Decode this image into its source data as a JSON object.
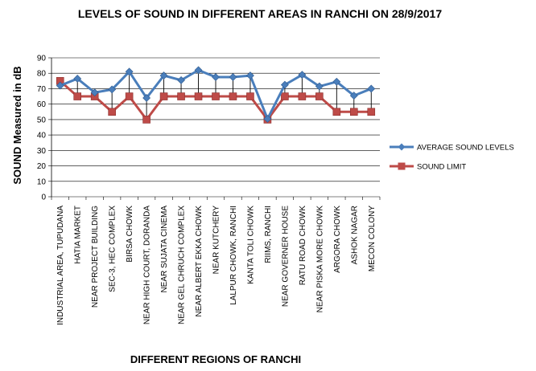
{
  "chart_data": {
    "type": "line",
    "title": "LEVELS OF SOUND IN DIFFERENT AREAS IN RANCHI ON 28/9/2017",
    "xlabel": "DIFFERENT REGIONS OF RANCHI",
    "ylabel": "SOUND  Measured in dB",
    "ylim": [
      0,
      90
    ],
    "yticks": [
      0,
      10,
      20,
      30,
      40,
      50,
      60,
      70,
      80,
      90
    ],
    "grid": "horizontal",
    "legend_position": "right",
    "categories": [
      "INDUSTRIAL AREA, TUPUDANA",
      "HATIA MARKET",
      "NEAR PROJECT BUILDING",
      "SEC-3, HEC COMPLEX",
      "BIRSA CHOWK",
      "NEAR HIGH COURT, DORANDA",
      "NEAR SUJATA CINEMA",
      "NEAR GEL CHRUCH COMPLEX",
      "NEAR ALBERT EKKA CHOWK",
      "NEAR KUTCHERY",
      "LALPUR CHOWK, RANCHI",
      "KANTA TOLI CHOWK",
      "RIIMS, RANCHI",
      "NEAR GOVERNER  HOUSE",
      "RATU ROAD CHOWK",
      "NEAR PISKA MORE CHOWK",
      "ARGORA CHOWK",
      "ASHOK NAGAR",
      "MECON COLONY"
    ],
    "series": [
      {
        "name": "AVERAGE SOUND LEVELS",
        "color": "#4a7ebb",
        "marker": "diamond",
        "values": [
          72,
          76.5,
          67.5,
          69.5,
          81,
          64,
          78.5,
          75.5,
          82,
          77.5,
          77.5,
          78.5,
          50.5,
          72.5,
          79,
          71.5,
          74.5,
          65.5,
          70
        ]
      },
      {
        "name": "SOUND LIMIT",
        "color": "#be4b48",
        "marker": "square",
        "values": [
          75,
          65,
          65,
          55,
          65,
          50,
          65,
          65,
          65,
          65,
          65,
          65,
          50,
          65,
          65,
          65,
          55,
          55,
          55
        ]
      }
    ]
  }
}
